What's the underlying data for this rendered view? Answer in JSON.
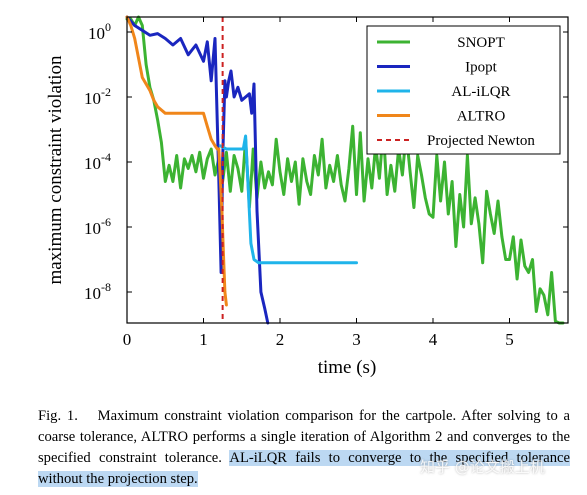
{
  "chart_data": {
    "type": "line",
    "xlabel": "time (s)",
    "ylabel": "maximum constraint violation",
    "xlim": [
      0,
      5.8
    ],
    "ylim_log10": [
      -9.3,
      0.5
    ],
    "y_scale": "log",
    "xticks": [
      "0",
      "1",
      "2",
      "3",
      "4",
      "5"
    ],
    "yticks": [
      "10^0",
      "10^-2",
      "10^-4",
      "10^-6",
      "10^-8"
    ],
    "legend_position": "top-right",
    "grid": false,
    "series": [
      {
        "name": "SNOPT",
        "color": "#3cb332",
        "x": [
          0.0,
          0.05,
          0.1,
          0.15,
          0.2,
          0.25,
          0.3,
          0.35,
          0.4,
          0.45,
          0.5,
          0.55,
          0.6,
          0.65,
          0.7,
          0.75,
          0.8,
          0.85,
          0.9,
          0.95,
          1.0,
          1.05,
          1.1,
          1.15,
          1.2,
          1.25,
          1.3,
          1.35,
          1.4,
          1.45,
          1.5,
          1.55,
          1.6,
          1.65,
          1.7,
          1.75,
          1.8,
          1.85,
          1.9,
          1.95,
          2.0,
          2.05,
          2.1,
          2.15,
          2.2,
          2.25,
          2.3,
          2.35,
          2.4,
          2.45,
          2.5,
          2.55,
          2.6,
          2.65,
          2.7,
          2.75,
          2.8,
          2.85,
          2.9,
          2.95,
          3.0,
          3.05,
          3.1,
          3.15,
          3.2,
          3.25,
          3.3,
          3.35,
          3.4,
          3.45,
          3.5,
          3.55,
          3.6,
          3.65,
          3.7,
          3.75,
          3.8,
          3.85,
          3.9,
          3.95,
          4.0,
          4.05,
          4.1,
          4.15,
          4.2,
          4.25,
          4.3,
          4.35,
          4.4,
          4.45,
          4.5,
          4.55,
          4.6,
          4.65,
          4.7,
          4.75,
          4.8,
          4.85,
          4.9,
          4.95,
          5.0,
          5.05,
          5.1,
          5.15,
          5.2,
          5.25,
          5.3,
          5.35,
          5.4,
          5.45,
          5.5,
          5.55,
          5.6,
          5.65,
          5.7
        ],
        "log10_y": [
          0.4,
          0.4,
          0.2,
          0.5,
          0.2,
          -1.0,
          -1.7,
          -2.1,
          -2.7,
          -3.4,
          -4.6,
          -4.1,
          -4.6,
          -3.8,
          -4.8,
          -3.9,
          -4.2,
          -3.8,
          -4.3,
          -3.7,
          -4.5,
          -3.9,
          -3.6,
          -4.4,
          -3.9,
          -4.6,
          -3.7,
          -4.9,
          -3.8,
          -4.2,
          -4.9,
          -3.3,
          -5.4,
          -3.6,
          -5.1,
          -4.0,
          -4.8,
          -4.3,
          -4.7,
          -3.3,
          -4.3,
          -5.0,
          -3.9,
          -4.6,
          -4.0,
          -5.3,
          -3.9,
          -4.6,
          -5.0,
          -3.8,
          -4.4,
          -3.3,
          -4.8,
          -4.1,
          -4.6,
          -3.8,
          -4.7,
          -5.2,
          -4.2,
          -2.9,
          -5.0,
          -3.1,
          -5.2,
          -3.9,
          -4.8,
          -3.5,
          -4.5,
          -3.0,
          -5.0,
          -4.1,
          -4.9,
          -3.6,
          -4.4,
          -3.1,
          -4.3,
          -5.4,
          -3.8,
          -4.4,
          -5.1,
          -5.6,
          -5.7,
          -3.8,
          -5.2,
          -4.0,
          -5.6,
          -4.6,
          -6.6,
          -5.0,
          -6.0,
          -3.8,
          -5.9,
          -5.1,
          -5.9,
          -7.1,
          -4.9,
          -5.6,
          -6.2,
          -5.2,
          -6.3,
          -7.0,
          -7.0,
          -6.3,
          -7.6,
          -6.4,
          -7.2,
          -7.4,
          -7.0,
          -8.6,
          -7.9,
          -8.1,
          -8.7,
          -7.4,
          -8.9,
          -9.3,
          -9.3
        ]
      },
      {
        "name": "Ipopt",
        "color": "#1a26bf",
        "x": [
          0.0,
          0.1,
          0.2,
          0.3,
          0.4,
          0.5,
          0.6,
          0.7,
          0.8,
          0.9,
          1.0,
          1.05,
          1.1,
          1.15,
          1.2,
          1.23,
          1.25,
          1.28,
          1.3,
          1.33,
          1.36,
          1.4,
          1.45,
          1.5,
          1.55,
          1.6,
          1.63,
          1.66,
          1.7,
          1.75,
          1.8,
          1.84
        ],
        "log10_y": [
          0.5,
          0.2,
          0.05,
          -0.1,
          -0.05,
          -0.2,
          -0.4,
          -0.2,
          -0.7,
          -0.4,
          -0.9,
          -0.3,
          -1.5,
          -0.2,
          -4.5,
          -7.4,
          -4.0,
          -1.5,
          -2.0,
          -1.5,
          -1.2,
          -2.0,
          -1.7,
          -2.1,
          -2.0,
          -1.9,
          -2.5,
          -1.6,
          -5.5,
          -8.0,
          -8.5,
          -9.0
        ]
      },
      {
        "name": "AL-iLQR",
        "color": "#1fb4ea",
        "x": [
          1.22,
          1.3,
          1.4,
          1.48,
          1.52,
          1.55,
          1.58,
          1.62,
          1.66,
          1.72,
          1.8,
          2.0,
          2.5,
          3.0
        ],
        "log10_y": [
          -3.5,
          -3.6,
          -3.6,
          -3.6,
          -3.6,
          -3.2,
          -4.6,
          -6.5,
          -7.0,
          -7.1,
          -7.1,
          -7.1,
          -7.1,
          -7.1
        ]
      },
      {
        "name": "ALTRO",
        "color": "#f0861a",
        "x": [
          0.0,
          0.05,
          0.1,
          0.15,
          0.2,
          0.25,
          0.3,
          0.35,
          0.4,
          0.45,
          0.5,
          0.6,
          0.7,
          0.8,
          0.9,
          1.0,
          1.05,
          1.1,
          1.15,
          1.18,
          1.2,
          1.22,
          1.24,
          1.26,
          1.28,
          1.3
        ],
        "log10_y": [
          0.5,
          0.2,
          -0.2,
          -0.8,
          -1.4,
          -1.6,
          -1.8,
          -2.1,
          -2.3,
          -2.4,
          -2.5,
          -2.5,
          -2.5,
          -2.5,
          -2.5,
          -2.5,
          -2.9,
          -3.3,
          -3.5,
          -3.6,
          -3.6,
          -4.5,
          -5.5,
          -6.8,
          -8.0,
          -8.4
        ]
      },
      {
        "name": "Projected Newton",
        "color": "#cc2222",
        "dashed": true,
        "vertical_x": 1.25
      }
    ]
  },
  "caption": {
    "label": "Fig. 1.",
    "text_main": "Maximum constraint violation comparison for the cartpole. After solving to a coarse tolerance, ALTRO performs a single iteration of Algorithm 2 and converges to the specified constraint tolerance.",
    "text_highlight": "AL-iLQR fails to converge to the specified tolerance without the projection step."
  },
  "watermark": "知乎 @论文搬上机"
}
